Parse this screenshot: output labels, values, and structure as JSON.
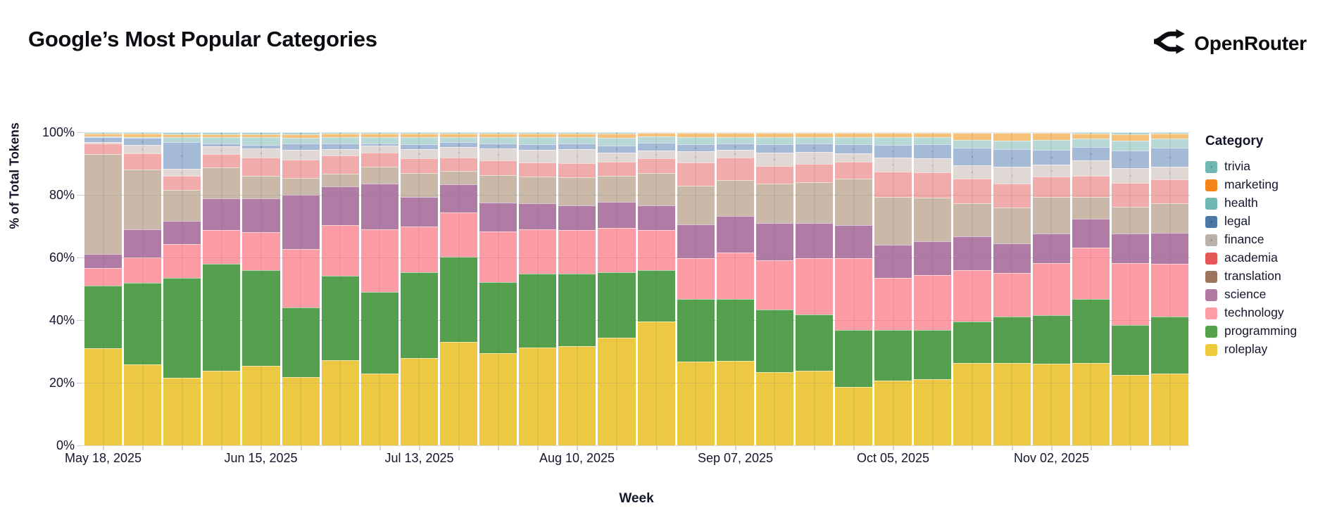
{
  "header": {
    "title": "Google’s Most Popular Categories",
    "brand": "OpenRouter"
  },
  "chart_data": {
    "type": "bar",
    "subtype": "100%-stacked-vertical",
    "title": "Google’s Most Popular Categories",
    "xlabel": "Week",
    "ylabel": "% of Total Tokens",
    "ylim": [
      0,
      100
    ],
    "grid": true,
    "legend_position": "right",
    "legend_title": "Category",
    "yticks": [
      {
        "v": 100,
        "label": "100%"
      },
      {
        "v": 80,
        "label": "80%"
      },
      {
        "v": 60,
        "label": "60%"
      },
      {
        "v": 40,
        "label": "40%"
      },
      {
        "v": 20,
        "label": "20%"
      },
      {
        "v": 0,
        "label": "0%"
      }
    ],
    "x": [
      "May 18, 2025",
      "May 25, 2025",
      "Jun 01, 2025",
      "Jun 08, 2025",
      "Jun 15, 2025",
      "Jun 22, 2025",
      "Jun 29, 2025",
      "Jul 06, 2025",
      "Jul 13, 2025",
      "Jul 20, 2025",
      "Jul 27, 2025",
      "Aug 03, 2025",
      "Aug 10, 2025",
      "Aug 17, 2025",
      "Aug 24, 2025",
      "Aug 31, 2025",
      "Sep 07, 2025",
      "Sep 14, 2025",
      "Sep 21, 2025",
      "Sep 28, 2025",
      "Oct 05, 2025",
      "Oct 12, 2025",
      "Oct 19, 2025",
      "Oct 26, 2025",
      "Nov 02, 2025",
      "Nov 09, 2025",
      "Nov 16, 2025",
      "Nov 23, 2025"
    ],
    "xtick_indices": [
      0,
      4,
      8,
      12,
      16,
      20,
      24
    ],
    "xtick_labels": [
      "May 18, 2025",
      "Jun 15, 2025",
      "Jul 13, 2025",
      "Aug 10, 2025",
      "Sep 07, 2025",
      "Oct 05, 2025",
      "Nov 02, 2025"
    ],
    "series": [
      {
        "name": "trivia",
        "bar_color": "#ACD5D1",
        "bar_dot": "rgba(47,126,120,0.35)",
        "legend_color": "#72B7B2",
        "legend_dot": "rgba(25,85,80,0.5)",
        "values": [
          0.5,
          0.5,
          0.7,
          0.6,
          0.6,
          0.7,
          0.5,
          0.5,
          0.5,
          0.4,
          0.4,
          0.4,
          0.4,
          0.4,
          0.3,
          0.3,
          0.3,
          0.3,
          0.3,
          0.2,
          0.2,
          0.2,
          0.2,
          0.2,
          0.2,
          0.5,
          0.7,
          0.5
        ]
      },
      {
        "name": "marketing",
        "bar_color": "#F7C17A",
        "legend_color": "#F58518",
        "values": [
          0.8,
          1.0,
          0.9,
          0.9,
          1.0,
          1.0,
          1.0,
          1.1,
          1.0,
          1.1,
          1.1,
          1.2,
          1.2,
          1.3,
          1.1,
          1.3,
          1.2,
          1.2,
          1.2,
          1.3,
          1.4,
          1.3,
          2.2,
          2.5,
          2.2,
          1.6,
          1.9,
          1.6
        ]
      },
      {
        "name": "health",
        "bar_color": "#B7D8D4",
        "legend_color": "#72B7B2",
        "values": [
          0.3,
          0.3,
          1.6,
          2.0,
          2.4,
          1.9,
          2.1,
          2.0,
          2.2,
          1.6,
          2.1,
          2.2,
          2.0,
          2.6,
          1.9,
          2.2,
          2.1,
          2.3,
          2.2,
          2.2,
          2.5,
          2.4,
          2.6,
          2.7,
          3.2,
          2.5,
          3.3,
          2.8
        ]
      },
      {
        "name": "legal",
        "bar_color": "#A4BAD6",
        "bar_dot": "rgba(38,82,134,0.30)",
        "legend_color": "#4C78A8",
        "legend_dot": "rgba(18,42,74,0.55)",
        "values": [
          1.6,
          2.2,
          8.4,
          1.0,
          1.2,
          2.1,
          1.7,
          0.7,
          1.7,
          1.5,
          1.6,
          1.7,
          1.9,
          2.1,
          2.5,
          2.2,
          2.1,
          2.6,
          2.5,
          3.0,
          4.0,
          4.3,
          5.5,
          5.7,
          4.7,
          4.3,
          5.5,
          6.0
        ]
      },
      {
        "name": "finance",
        "bar_color": "#DFD8D4",
        "bar_dot": "rgba(140,125,115,0.35)",
        "legend_color": "#BAB0AC",
        "legend_dot": "rgba(80,70,64,0.5)",
        "values": [
          0.4,
          2.8,
          2.4,
          2.5,
          2.8,
          3.0,
          2.2,
          2.1,
          3.0,
          3.5,
          3.7,
          4.1,
          4.3,
          3.1,
          2.6,
          3.6,
          2.4,
          4.3,
          4.0,
          2.8,
          4.6,
          4.5,
          4.3,
          5.4,
          3.9,
          5.1,
          4.7,
          4.1
        ]
      },
      {
        "name": "academia",
        "bar_color": "#F0ABAA",
        "legend_color": "#E45756",
        "values": [
          3.3,
          5.2,
          4.5,
          4.2,
          6.0,
          5.8,
          5.8,
          4.5,
          4.7,
          4.3,
          4.7,
          4.5,
          4.7,
          4.5,
          4.6,
          7.6,
          7.1,
          5.6,
          5.8,
          5.4,
          8.1,
          8.2,
          7.8,
          7.5,
          6.5,
          6.7,
          7.8,
          7.7
        ]
      },
      {
        "name": "translation",
        "bar_color": "#CAB8A9",
        "legend_color": "#9D755D",
        "values": [
          32.0,
          19.1,
          9.7,
          9.8,
          7.1,
          5.6,
          4.0,
          5.4,
          7.6,
          4.3,
          8.8,
          8.6,
          8.8,
          8.2,
          10.5,
          12.2,
          11.6,
          12.7,
          13.1,
          14.8,
          15.3,
          14.0,
          10.6,
          11.4,
          11.6,
          6.9,
          8.5,
          9.3
        ]
      },
      {
        "name": "science",
        "bar_color": "#B07CA6",
        "legend_color": "#B279A2",
        "values": [
          4.5,
          9.0,
          7.5,
          10.1,
          10.9,
          17.2,
          12.4,
          14.8,
          9.4,
          9.0,
          9.2,
          8.2,
          8.1,
          8.4,
          7.9,
          10.9,
          11.6,
          11.8,
          11.2,
          10.7,
          10.5,
          10.7,
          10.9,
          9.6,
          9.6,
          9.2,
          9.5,
          10.0
        ]
      },
      {
        "name": "technology",
        "bar_color": "#FE9CA6",
        "legend_color": "#FF9DA6",
        "values": [
          5.6,
          7.9,
          10.9,
          10.9,
          12.0,
          18.7,
          16.1,
          20.0,
          14.6,
          14.0,
          16.1,
          14.2,
          13.9,
          14.1,
          12.7,
          13.1,
          15.0,
          15.9,
          18.0,
          22.8,
          16.7,
          17.6,
          16.4,
          13.8,
          16.6,
          16.5,
          19.7,
          16.9
        ]
      },
      {
        "name": "programming",
        "bar_color": "#55A04F",
        "legend_color": "#54A24B",
        "values": [
          20.0,
          26.2,
          31.8,
          34.1,
          30.7,
          22.1,
          27.0,
          26.0,
          27.3,
          27.3,
          22.8,
          23.6,
          23.2,
          21.0,
          16.5,
          19.9,
          19.7,
          19.9,
          18.0,
          18.4,
          16.1,
          15.7,
          13.2,
          15.0,
          15.6,
          20.4,
          16.0,
          18.1
        ]
      },
      {
        "name": "roleplay",
        "bar_color": "#EDC943",
        "legend_color": "#EECA3B",
        "values": [
          31.0,
          25.8,
          21.6,
          23.8,
          25.3,
          21.9,
          27.2,
          22.9,
          27.9,
          33.0,
          29.4,
          31.3,
          31.7,
          34.3,
          39.6,
          26.8,
          27.0,
          23.4,
          23.8,
          18.6,
          20.8,
          21.2,
          26.3,
          26.2,
          26.1,
          26.2,
          22.5,
          22.9
        ]
      }
    ]
  }
}
